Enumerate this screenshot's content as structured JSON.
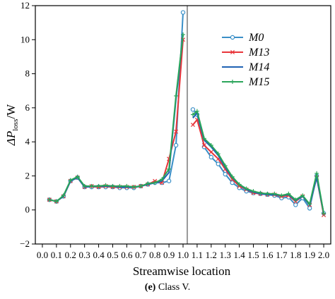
{
  "caption": {
    "label": "(e)",
    "text": " Class V."
  },
  "colors": {
    "M0": "#3a8fc7",
    "M13": "#e8353a",
    "M14": "#1f62b4",
    "M15": "#2aa55a",
    "divider": "#9a9a9a"
  },
  "chart_data": {
    "type": "line",
    "xlabel": "Streamwise location",
    "ylabel_main": "ΔP",
    "ylabel_sub": "loss",
    "ylabel_unit": "/W",
    "xlim": [
      -0.05,
      2.05
    ],
    "ylim": [
      -2,
      12
    ],
    "xticks": [
      "0.0",
      "0.1",
      "0.2",
      "0.3",
      "0.4",
      "0.5",
      "0.6",
      "0.7",
      "0.8",
      "0.9",
      "1.0",
      "1.1",
      "1.2",
      "1.3",
      "1.4",
      "1.5",
      "1.6",
      "1.7",
      "1.8",
      "1.9",
      "2.0"
    ],
    "xtick_values": [
      0,
      0.1,
      0.2,
      0.3,
      0.4,
      0.5,
      0.6,
      0.7,
      0.8,
      0.9,
      1.0,
      1.1,
      1.2,
      1.3,
      1.4,
      1.5,
      1.6,
      1.7,
      1.8,
      1.9,
      2.0
    ],
    "yticks": [
      "−2",
      "0",
      "2",
      "4",
      "6",
      "8",
      "10",
      "12"
    ],
    "ytick_values": [
      -2,
      0,
      2,
      4,
      6,
      8,
      10,
      12
    ],
    "divider_x": 1.03,
    "legend_position": "top-right",
    "series": [
      {
        "name": "M0",
        "marker": "circle",
        "color_key": "M0",
        "segments": [
          [
            [
              0.05,
              0.6
            ],
            [
              0.1,
              0.5
            ],
            [
              0.15,
              0.8
            ],
            [
              0.2,
              1.7
            ],
            [
              0.25,
              1.9
            ],
            [
              0.3,
              1.35
            ],
            [
              0.35,
              1.35
            ],
            [
              0.4,
              1.35
            ],
            [
              0.45,
              1.35
            ],
            [
              0.5,
              1.35
            ],
            [
              0.55,
              1.3
            ],
            [
              0.6,
              1.3
            ],
            [
              0.65,
              1.3
            ],
            [
              0.7,
              1.4
            ],
            [
              0.75,
              1.5
            ],
            [
              0.8,
              1.6
            ],
            [
              0.85,
              1.6
            ],
            [
              0.9,
              1.7
            ],
            [
              0.95,
              3.8
            ],
            [
              1.0,
              11.6
            ]
          ],
          [
            [
              1.07,
              5.9
            ],
            [
              1.1,
              5.6
            ],
            [
              1.15,
              3.7
            ],
            [
              1.2,
              3.1
            ],
            [
              1.25,
              2.7
            ],
            [
              1.3,
              2.1
            ],
            [
              1.35,
              1.6
            ],
            [
              1.4,
              1.3
            ],
            [
              1.45,
              1.1
            ],
            [
              1.5,
              1.0
            ],
            [
              1.55,
              0.95
            ],
            [
              1.6,
              0.9
            ],
            [
              1.65,
              0.85
            ],
            [
              1.7,
              0.7
            ],
            [
              1.75,
              0.75
            ],
            [
              1.8,
              0.3
            ],
            [
              1.85,
              0.7
            ],
            [
              1.9,
              0.1
            ],
            [
              1.95,
              2.0
            ],
            [
              2.0,
              -0.2
            ]
          ]
        ]
      },
      {
        "name": "M13",
        "marker": "x",
        "color_key": "M13",
        "segments": [
          [
            [
              0.05,
              0.6
            ],
            [
              0.1,
              0.5
            ],
            [
              0.15,
              0.8
            ],
            [
              0.2,
              1.7
            ],
            [
              0.25,
              1.9
            ],
            [
              0.3,
              1.35
            ],
            [
              0.35,
              1.4
            ],
            [
              0.4,
              1.35
            ],
            [
              0.45,
              1.4
            ],
            [
              0.5,
              1.35
            ],
            [
              0.55,
              1.35
            ],
            [
              0.6,
              1.35
            ],
            [
              0.65,
              1.35
            ],
            [
              0.7,
              1.4
            ],
            [
              0.75,
              1.5
            ],
            [
              0.8,
              1.7
            ],
            [
              0.85,
              1.6
            ],
            [
              0.9,
              3.0
            ],
            [
              0.95,
              4.6
            ],
            [
              1.0,
              10.0
            ]
          ],
          [
            [
              1.07,
              5.0
            ],
            [
              1.1,
              5.3
            ],
            [
              1.15,
              3.8
            ],
            [
              1.2,
              3.4
            ],
            [
              1.25,
              3.0
            ],
            [
              1.3,
              2.4
            ],
            [
              1.35,
              1.8
            ],
            [
              1.4,
              1.4
            ],
            [
              1.45,
              1.2
            ],
            [
              1.5,
              1.0
            ],
            [
              1.55,
              0.95
            ],
            [
              1.6,
              0.9
            ],
            [
              1.65,
              0.9
            ],
            [
              1.7,
              0.8
            ],
            [
              1.75,
              0.85
            ],
            [
              1.8,
              0.5
            ],
            [
              1.85,
              0.8
            ],
            [
              1.9,
              0.3
            ],
            [
              1.95,
              1.9
            ],
            [
              2.0,
              -0.3
            ]
          ]
        ]
      },
      {
        "name": "M14",
        "marker": "none",
        "color_key": "M14",
        "segments": [
          [
            [
              0.05,
              0.6
            ],
            [
              0.1,
              0.5
            ],
            [
              0.15,
              0.8
            ],
            [
              0.2,
              1.7
            ],
            [
              0.25,
              1.9
            ],
            [
              0.3,
              1.35
            ],
            [
              0.35,
              1.4
            ],
            [
              0.4,
              1.4
            ],
            [
              0.45,
              1.4
            ],
            [
              0.5,
              1.4
            ],
            [
              0.55,
              1.35
            ],
            [
              0.6,
              1.35
            ],
            [
              0.65,
              1.35
            ],
            [
              0.7,
              1.4
            ],
            [
              0.75,
              1.5
            ],
            [
              0.8,
              1.6
            ],
            [
              0.85,
              1.7
            ],
            [
              0.9,
              2.2
            ],
            [
              0.95,
              6.5
            ],
            [
              1.0,
              10.3
            ]
          ],
          [
            [
              1.07,
              5.4
            ],
            [
              1.1,
              5.7
            ],
            [
              1.15,
              4.1
            ],
            [
              1.2,
              3.7
            ],
            [
              1.25,
              3.2
            ],
            [
              1.3,
              2.5
            ],
            [
              1.35,
              1.9
            ],
            [
              1.4,
              1.5
            ],
            [
              1.45,
              1.2
            ],
            [
              1.5,
              1.05
            ],
            [
              1.55,
              0.95
            ],
            [
              1.6,
              0.9
            ],
            [
              1.65,
              0.9
            ],
            [
              1.7,
              0.85
            ],
            [
              1.75,
              0.9
            ],
            [
              1.8,
              0.55
            ],
            [
              1.85,
              0.8
            ],
            [
              1.9,
              0.3
            ],
            [
              1.95,
              1.9
            ],
            [
              2.0,
              -0.2
            ]
          ]
        ]
      },
      {
        "name": "M15",
        "marker": "plus",
        "color_key": "M15",
        "segments": [
          [
            [
              0.05,
              0.6
            ],
            [
              0.1,
              0.5
            ],
            [
              0.15,
              0.85
            ],
            [
              0.2,
              1.75
            ],
            [
              0.25,
              1.95
            ],
            [
              0.3,
              1.4
            ],
            [
              0.35,
              1.4
            ],
            [
              0.4,
              1.4
            ],
            [
              0.45,
              1.45
            ],
            [
              0.5,
              1.4
            ],
            [
              0.55,
              1.4
            ],
            [
              0.6,
              1.4
            ],
            [
              0.65,
              1.35
            ],
            [
              0.7,
              1.4
            ],
            [
              0.75,
              1.55
            ],
            [
              0.8,
              1.6
            ],
            [
              0.85,
              1.8
            ],
            [
              0.9,
              2.4
            ],
            [
              0.95,
              6.7
            ],
            [
              1.0,
              10.3
            ]
          ],
          [
            [
              1.07,
              5.6
            ],
            [
              1.1,
              5.8
            ],
            [
              1.15,
              4.2
            ],
            [
              1.2,
              3.8
            ],
            [
              1.25,
              3.3
            ],
            [
              1.3,
              2.6
            ],
            [
              1.35,
              1.95
            ],
            [
              1.4,
              1.5
            ],
            [
              1.45,
              1.25
            ],
            [
              1.5,
              1.1
            ],
            [
              1.55,
              1.0
            ],
            [
              1.6,
              0.95
            ],
            [
              1.65,
              0.95
            ],
            [
              1.7,
              0.85
            ],
            [
              1.75,
              0.95
            ],
            [
              1.8,
              0.6
            ],
            [
              1.85,
              0.85
            ],
            [
              1.9,
              0.35
            ],
            [
              1.95,
              2.15
            ],
            [
              2.0,
              -0.2
            ]
          ]
        ]
      }
    ]
  }
}
